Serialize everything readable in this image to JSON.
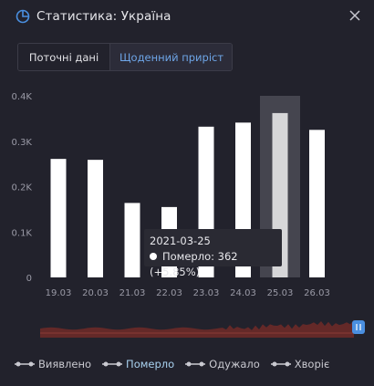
{
  "header": {
    "title": "Статистика: Україна",
    "icon": "pie-chart-icon",
    "close_icon": "close-icon"
  },
  "tabs": [
    {
      "label": "Поточні дані",
      "active": false
    },
    {
      "label": "Щоденний приріст",
      "active": true
    }
  ],
  "colors": {
    "background": "#22222c",
    "bar": "#ffffff",
    "bar_hover": "#d6d6d8",
    "hover_band": "#45454f",
    "accent": "#6ea6e8",
    "navigator_fill": "#6b2a28",
    "navigator_handle": "#4a8fe0"
  },
  "chart_data": {
    "type": "bar",
    "categories": [
      "19.03",
      "20.03",
      "21.03",
      "22.03",
      "23.03",
      "24.03",
      "25.03",
      "26.03"
    ],
    "series": [
      {
        "name": "Померло",
        "values": [
          261,
          259,
          164,
          155,
          332,
          341,
          362,
          325
        ]
      }
    ],
    "y_ticks": [
      "0",
      "0.1K",
      "0.2K",
      "0.3K",
      "0.4K"
    ],
    "ylim": [
      0,
      400
    ],
    "grid": false,
    "highlighted_index": 6
  },
  "tooltip": {
    "date": "2021-03-25",
    "line": "Померло: 362 (+5.85%)"
  },
  "legend": [
    {
      "label": "Виявлено",
      "active": false
    },
    {
      "label": "Померло",
      "active": true
    },
    {
      "label": "Одужало",
      "active": false
    },
    {
      "label": "Хворіє",
      "active": false
    }
  ]
}
